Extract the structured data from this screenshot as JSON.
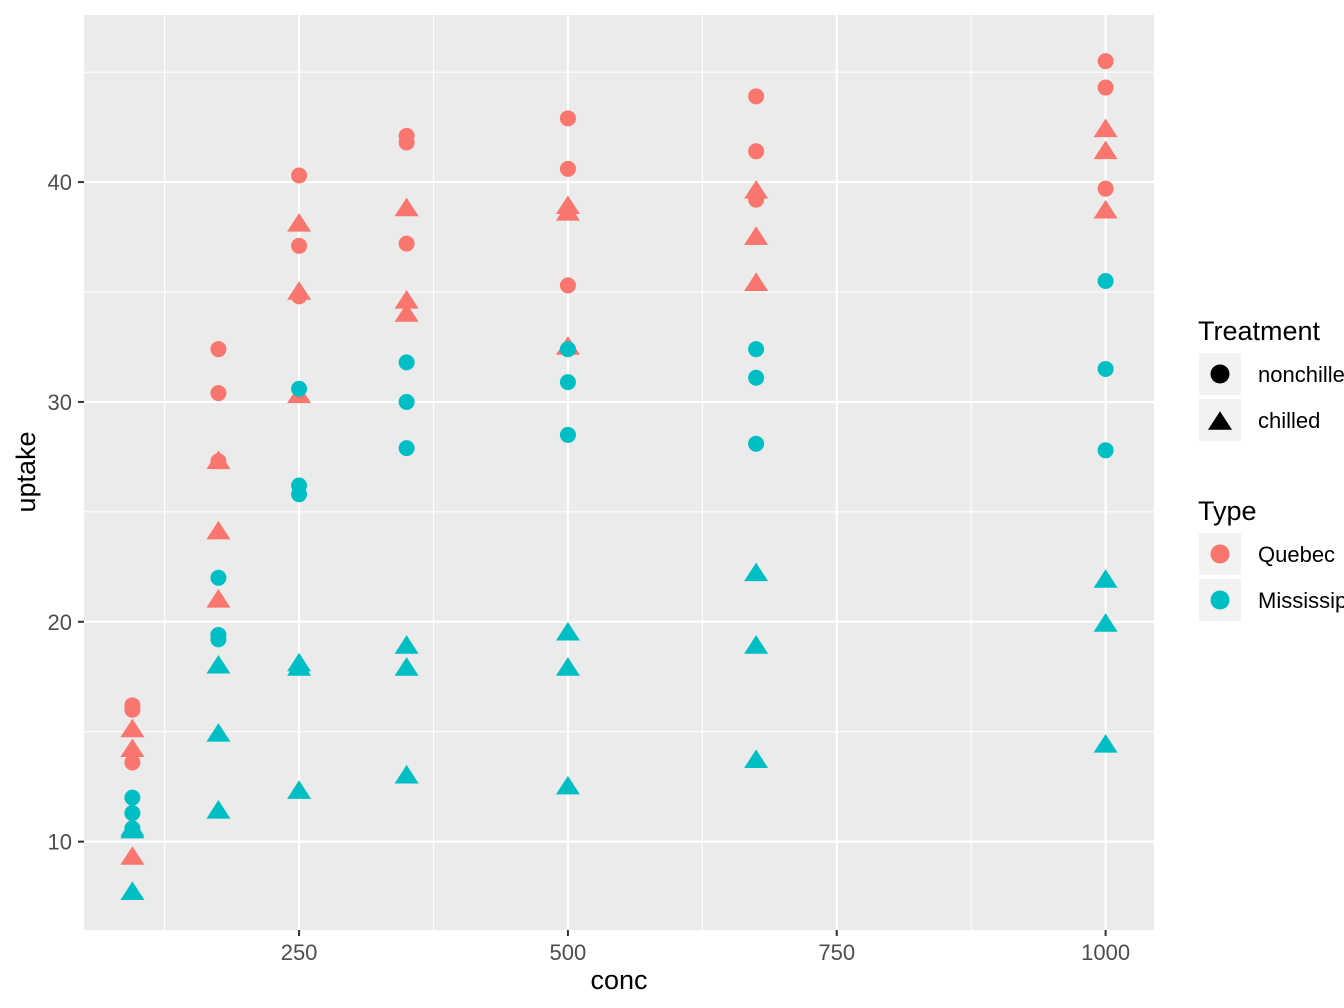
{
  "chart_data": {
    "type": "scatter",
    "title": "",
    "xlabel": "conc",
    "ylabel": "uptake",
    "xlim": [
      50,
      1045
    ],
    "ylim": [
      5.98,
      47.6
    ],
    "x_ticks": [
      250,
      500,
      750,
      1000
    ],
    "x_tick_labels": [
      "250",
      "500",
      "750",
      "1000"
    ],
    "y_ticks": [
      10,
      20,
      30,
      40
    ],
    "y_tick_labels": [
      "10",
      "20",
      "30",
      "40"
    ],
    "grid": true,
    "background": "#EBEBEB",
    "colors": {
      "Quebec": "#F8766D",
      "Mississippi": "#00BFC4"
    },
    "shapes": {
      "nonchilled": "circle",
      "chilled": "triangle"
    },
    "legend_placement": "right",
    "legend": [
      {
        "title": "Treatment",
        "entries": [
          {
            "label": "nonchilled",
            "shape": "circle",
            "color": "#000000"
          },
          {
            "label": "chilled",
            "shape": "triangle",
            "color": "#000000"
          }
        ]
      },
      {
        "title": "Type",
        "entries": [
          {
            "label": "Quebec",
            "shape": "circle",
            "color": "#F8766D"
          },
          {
            "label": "Mississippi",
            "shape": "circle",
            "color": "#00BFC4"
          }
        ]
      }
    ],
    "series": [
      {
        "type": "Quebec",
        "treatment": "nonchilled",
        "points": [
          [
            95,
            16.0
          ],
          [
            175,
            30.4
          ],
          [
            250,
            34.8
          ],
          [
            350,
            37.2
          ],
          [
            500,
            35.3
          ],
          [
            675,
            39.2
          ],
          [
            1000,
            39.7
          ],
          [
            95,
            13.6
          ],
          [
            175,
            27.3
          ],
          [
            250,
            37.1
          ],
          [
            350,
            41.8
          ],
          [
            500,
            40.6
          ],
          [
            675,
            41.4
          ],
          [
            1000,
            44.3
          ],
          [
            95,
            16.2
          ],
          [
            175,
            32.4
          ],
          [
            250,
            40.3
          ],
          [
            350,
            42.1
          ],
          [
            500,
            42.9
          ],
          [
            675,
            43.9
          ],
          [
            1000,
            45.5
          ]
        ]
      },
      {
        "type": "Quebec",
        "treatment": "chilled",
        "points": [
          [
            95,
            14.2
          ],
          [
            175,
            24.1
          ],
          [
            250,
            30.3
          ],
          [
            350,
            34.6
          ],
          [
            500,
            32.5
          ],
          [
            675,
            35.4
          ],
          [
            1000,
            38.7
          ],
          [
            95,
            9.3
          ],
          [
            175,
            27.3
          ],
          [
            250,
            35.0
          ],
          [
            350,
            38.8
          ],
          [
            500,
            38.6
          ],
          [
            675,
            37.5
          ],
          [
            1000,
            42.4
          ],
          [
            95,
            15.1
          ],
          [
            175,
            21.0
          ],
          [
            250,
            38.1
          ],
          [
            350,
            34.0
          ],
          [
            500,
            38.9
          ],
          [
            675,
            39.6
          ],
          [
            1000,
            41.4
          ]
        ]
      },
      {
        "type": "Mississippi",
        "treatment": "nonchilled",
        "points": [
          [
            95,
            10.6
          ],
          [
            175,
            19.2
          ],
          [
            250,
            26.2
          ],
          [
            350,
            30.0
          ],
          [
            500,
            30.9
          ],
          [
            675,
            32.4
          ],
          [
            1000,
            35.5
          ],
          [
            95,
            12.0
          ],
          [
            175,
            22.0
          ],
          [
            250,
            30.6
          ],
          [
            350,
            31.8
          ],
          [
            500,
            32.4
          ],
          [
            675,
            31.1
          ],
          [
            1000,
            31.5
          ],
          [
            95,
            11.3
          ],
          [
            175,
            19.4
          ],
          [
            250,
            25.8
          ],
          [
            350,
            27.9
          ],
          [
            500,
            28.5
          ],
          [
            675,
            28.1
          ],
          [
            1000,
            27.8
          ]
        ]
      },
      {
        "type": "Mississippi",
        "treatment": "chilled",
        "points": [
          [
            95,
            10.5
          ],
          [
            175,
            14.9
          ],
          [
            250,
            18.1
          ],
          [
            350,
            18.9
          ],
          [
            500,
            19.5
          ],
          [
            675,
            22.2
          ],
          [
            1000,
            21.9
          ],
          [
            95,
            7.7
          ],
          [
            175,
            11.4
          ],
          [
            250,
            12.3
          ],
          [
            350,
            13.0
          ],
          [
            500,
            12.5
          ],
          [
            675,
            13.7
          ],
          [
            1000,
            14.4
          ],
          [
            95,
            10.6
          ],
          [
            175,
            18.0
          ],
          [
            250,
            17.9
          ],
          [
            350,
            17.9
          ],
          [
            500,
            17.9
          ],
          [
            675,
            18.9
          ],
          [
            1000,
            19.9
          ]
        ]
      }
    ]
  }
}
